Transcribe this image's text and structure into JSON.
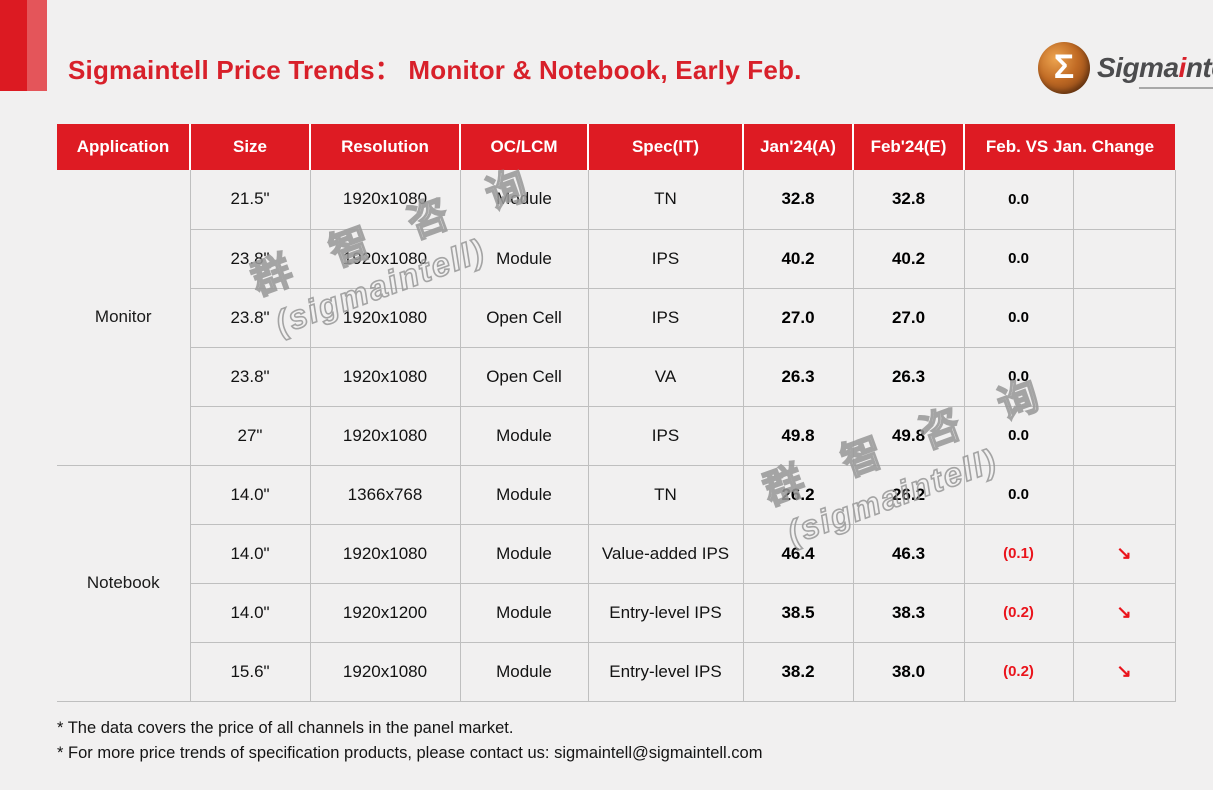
{
  "slide": {
    "title": "Sigmaintell Price Trends：  Monitor & Notebook, Early Feb.",
    "logo": {
      "mark_glyph": "Σ",
      "part1": "Sigma",
      "accent": "i",
      "part2": "ntell"
    },
    "colors": {
      "header_red": "#de1b23",
      "title_red": "#d8202a",
      "negative_red": "#ea141c",
      "corner_dark": "#dc1a22",
      "corner_light": "#e4555a"
    }
  },
  "table": {
    "headers": [
      "Application",
      "Size",
      "Resolution",
      "OC/LCM",
      "Spec(IT)",
      "Jan'24(A)",
      "Feb'24(E)",
      "Feb. VS Jan. Change"
    ],
    "groups": [
      {
        "application": "Monitor",
        "rows": [
          {
            "size": "21.5\"",
            "resolution": "1920x1080",
            "oc_lcm": "Module",
            "spec": "TN",
            "jan": "32.8",
            "feb": "32.8",
            "change": "0.0",
            "arrow": "",
            "negative": false
          },
          {
            "size": "23.8\"",
            "resolution": "1920x1080",
            "oc_lcm": "Module",
            "spec": "IPS",
            "jan": "40.2",
            "feb": "40.2",
            "change": "0.0",
            "arrow": "",
            "negative": false
          },
          {
            "size": "23.8\"",
            "resolution": "1920x1080",
            "oc_lcm": "Open Cell",
            "spec": "IPS",
            "jan": "27.0",
            "feb": "27.0",
            "change": "0.0",
            "arrow": "",
            "negative": false
          },
          {
            "size": "23.8\"",
            "resolution": "1920x1080",
            "oc_lcm": "Open Cell",
            "spec": "VA",
            "jan": "26.3",
            "feb": "26.3",
            "change": "0.0",
            "arrow": "",
            "negative": false
          },
          {
            "size": "27\"",
            "resolution": "1920x1080",
            "oc_lcm": "Module",
            "spec": "IPS",
            "jan": "49.8",
            "feb": "49.8",
            "change": "0.0",
            "arrow": "",
            "negative": false
          }
        ]
      },
      {
        "application": "Notebook",
        "rows": [
          {
            "size": "14.0\"",
            "resolution": "1366x768",
            "oc_lcm": "Module",
            "spec": "TN",
            "jan": "26.2",
            "feb": "26.2",
            "change": "0.0",
            "arrow": "",
            "negative": false
          },
          {
            "size": "14.0\"",
            "resolution": "1920x1080",
            "oc_lcm": "Module",
            "spec": "Value-added IPS",
            "jan": "46.4",
            "feb": "46.3",
            "change": "(0.1)",
            "arrow": "↘",
            "negative": true
          },
          {
            "size": "14.0\"",
            "resolution": "1920x1200",
            "oc_lcm": "Module",
            "spec": "Entry-level IPS",
            "jan": "38.5",
            "feb": "38.3",
            "change": "(0.2)",
            "arrow": "↘",
            "negative": true
          },
          {
            "size": "15.6\"",
            "resolution": "1920x1080",
            "oc_lcm": "Module",
            "spec": "Entry-level IPS",
            "jan": "38.2",
            "feb": "38.0",
            "change": "(0.2)",
            "arrow": "↘",
            "negative": true
          }
        ]
      }
    ]
  },
  "watermark": {
    "line1": "群 智 咨 询",
    "line2": "(sigmaintell)"
  },
  "footnotes": [
    "* The data covers the price of all channels in the panel market.",
    "* For more price trends of specification products, please contact us: sigmaintell@sigmaintell.com"
  ]
}
